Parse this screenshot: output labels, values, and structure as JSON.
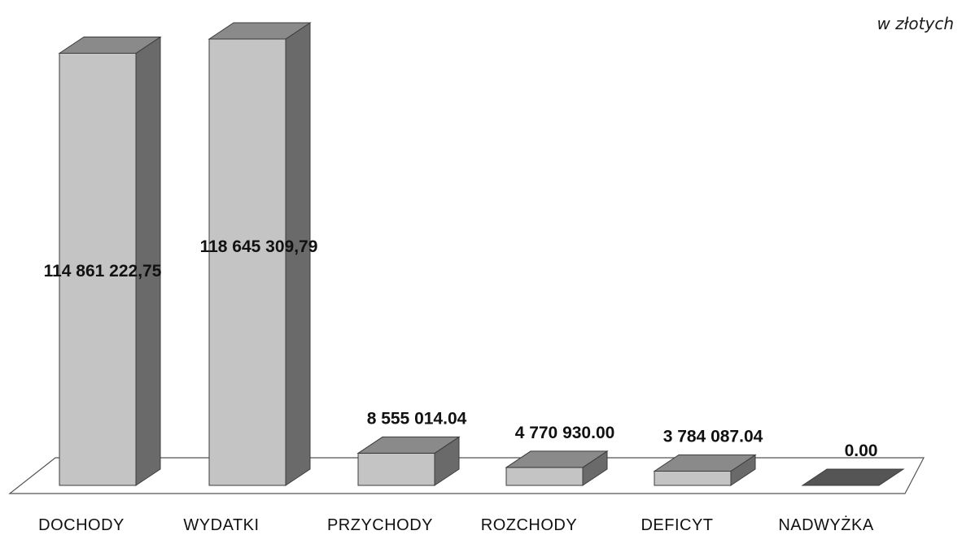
{
  "unit_note": "w złotych",
  "chart_data": {
    "type": "bar",
    "title": "",
    "xlabel": "",
    "ylabel": "",
    "ylim": [
      0,
      118645309.79
    ],
    "grid": false,
    "legend": false,
    "style": "3d-column",
    "categories": [
      "DOCHODY",
      "WYDATKI",
      "PRZYCHODY",
      "ROZCHODY",
      "DEFICYT",
      "NADWYŻKA"
    ],
    "values": [
      114861222.75,
      118645309.79,
      8555014.04,
      4770930.0,
      3784087.04,
      0.0
    ],
    "value_labels": [
      "114 861 222,75",
      "118 645 309,79",
      "8 555 014.04",
      "4 770 930.00",
      "3 784 087.04",
      "0.00"
    ],
    "colors": {
      "front": "#c4c4c4",
      "top": "#8a8a8a",
      "side": "#6a6a6a",
      "edge": "#3c3c3c",
      "floor": "#555555"
    }
  }
}
